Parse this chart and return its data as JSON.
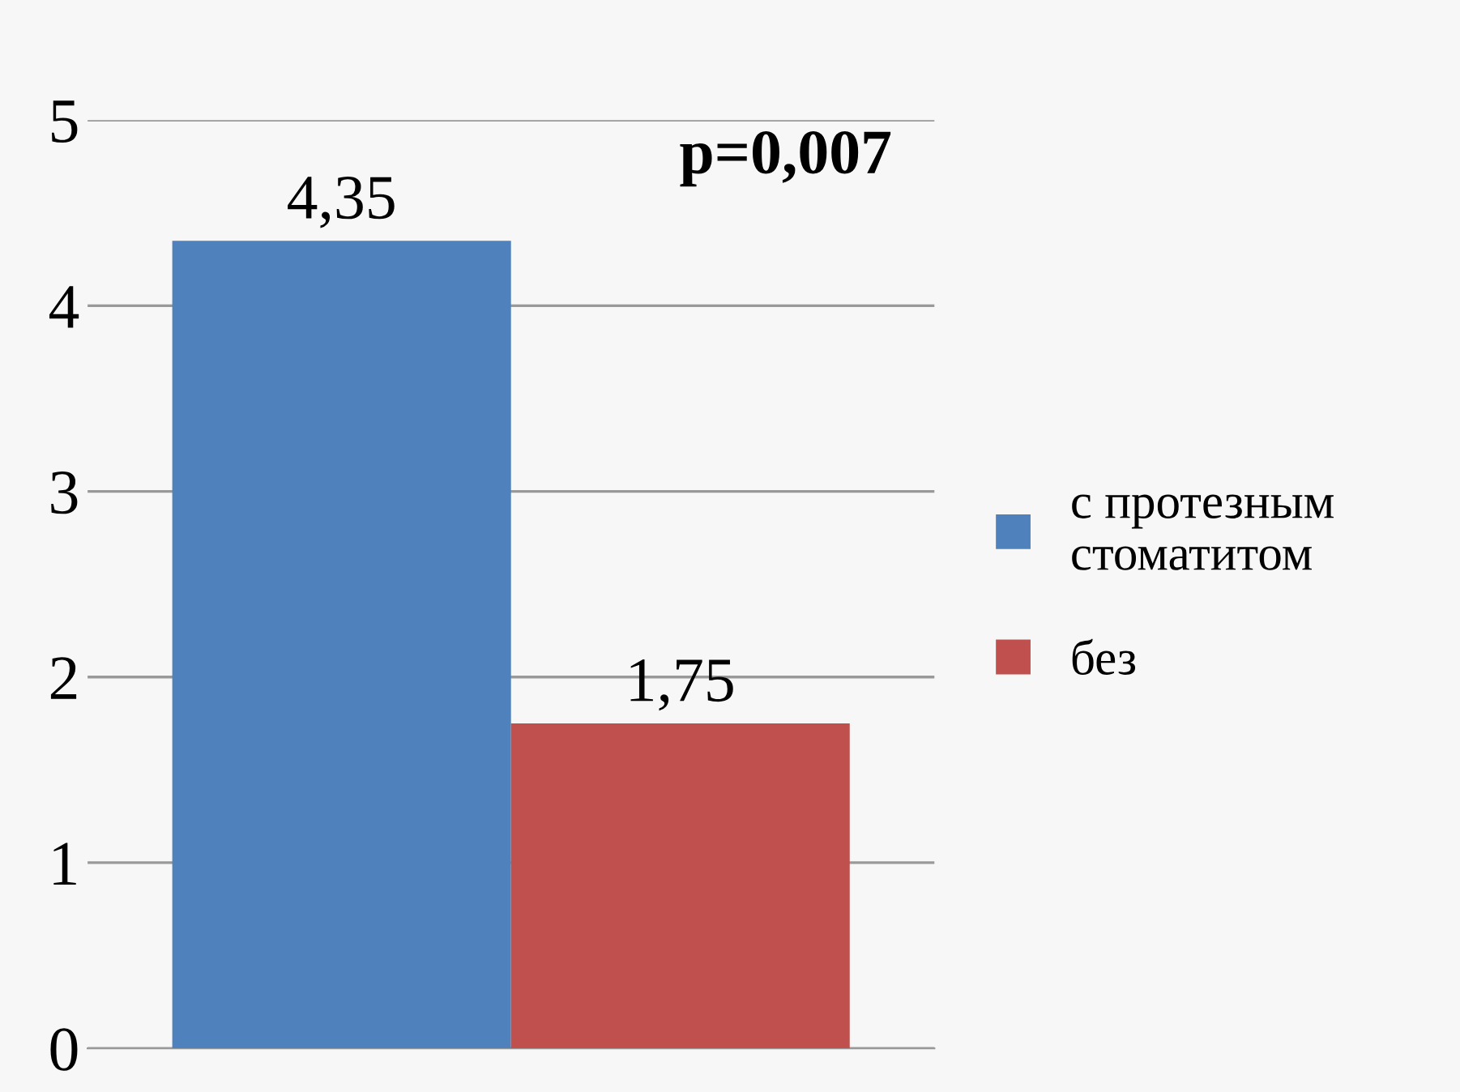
{
  "chart_data": {
    "type": "bar",
    "categories": [
      null
    ],
    "series": [
      {
        "name": "с протезным стоматитом",
        "color": "#4f81bd",
        "values": [
          4.35
        ],
        "value_labels": [
          "4,35"
        ]
      },
      {
        "name": "без",
        "color": "#c0504d",
        "values": [
          1.75
        ],
        "value_labels": [
          "1,75"
        ]
      }
    ],
    "annotations": [
      "p=0,007"
    ],
    "ylim": [
      0,
      5
    ],
    "yticks": [
      0,
      1,
      2,
      3,
      4,
      5
    ],
    "grid": "y",
    "legend": "right"
  }
}
